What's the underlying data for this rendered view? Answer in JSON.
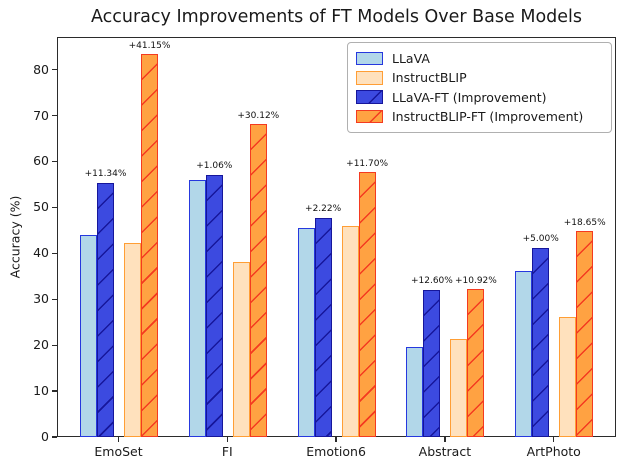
{
  "chart_data": {
    "type": "bar",
    "title": "Accuracy Improvements of FT Models Over Base Models",
    "xlabel": "",
    "ylabel": "Accuracy (%)",
    "ylim": [
      0,
      87.1
    ],
    "yticks": [
      0,
      10,
      20,
      30,
      40,
      50,
      60,
      70,
      80
    ],
    "categories": [
      "EmoSet",
      "FI",
      "Emotion6",
      "Abstract",
      "ArtPhoto"
    ],
    "grid": false,
    "legend_position": "upper right",
    "series": [
      {
        "name": "LLaVA",
        "values": [
          44.0,
          56.0,
          45.5,
          19.5,
          36.2
        ],
        "fill": "#B2D7E9",
        "edge": "#2638DE",
        "hatch": false
      },
      {
        "name": "InstructBLIP",
        "values": [
          42.2,
          38.0,
          46.0,
          21.3,
          26.2
        ],
        "fill": "#FFE1BD",
        "edge": "#FF9E35",
        "hatch": false
      },
      {
        "name": "LLaVA-FT (Improvement)",
        "values": [
          55.34,
          57.06,
          47.72,
          32.1,
          41.2
        ],
        "fill": "#3C4AE0",
        "edge": "#16169B",
        "hatch": true,
        "hatch_color": "#16169B",
        "annotations": [
          "+11.34%",
          "+1.06%",
          "+2.22%",
          "+12.60%",
          "+5.00%"
        ]
      },
      {
        "name": "InstructBLIP-FT (Improvement)",
        "values": [
          83.35,
          68.12,
          57.7,
          32.22,
          44.85
        ],
        "fill": "#FFA242",
        "edge": "#F43A20",
        "hatch": true,
        "hatch_color": "#F43A20",
        "annotations": [
          "+41.15%",
          "+30.12%",
          "+11.70%",
          "+10.92%",
          "+18.65%"
        ]
      }
    ],
    "frame_color": "#2b2b2b"
  }
}
